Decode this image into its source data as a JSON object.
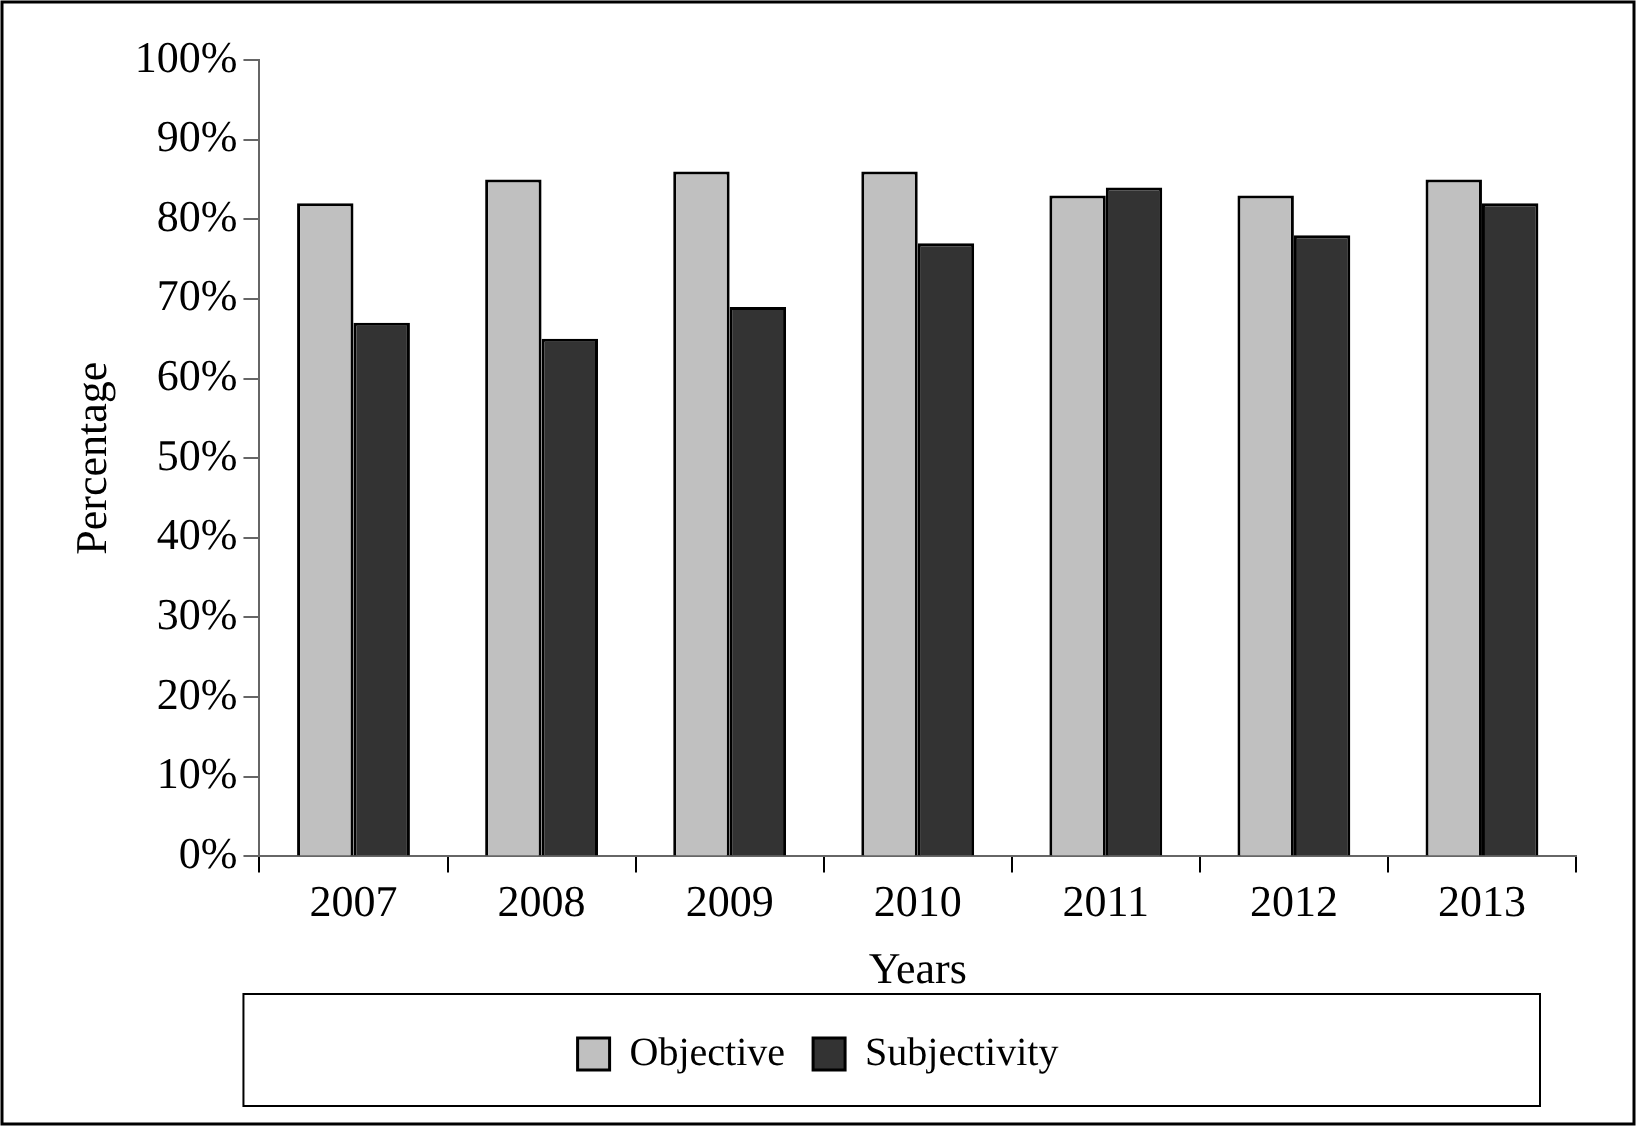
{
  "chart_data": {
    "type": "bar",
    "xlabel": "Years",
    "ylabel": "Percentage",
    "categories": [
      "2007",
      "2008",
      "2009",
      "2010",
      "2011",
      "2012",
      "2013"
    ],
    "series": [
      {
        "name": "Objective",
        "color": "#c0c0c0",
        "values": [
          82,
          85,
          86,
          86,
          83,
          83,
          85
        ]
      },
      {
        "name": "Subjectivity",
        "color": "#333333",
        "values": [
          67,
          65,
          69,
          77,
          84,
          78,
          82
        ]
      }
    ],
    "ylim": [
      0,
      100
    ],
    "yticks": [
      {
        "value": 0,
        "label": "0%"
      },
      {
        "value": 10,
        "label": "10%"
      },
      {
        "value": 20,
        "label": "20%"
      },
      {
        "value": 30,
        "label": "30%"
      },
      {
        "value": 40,
        "label": "40%"
      },
      {
        "value": 50,
        "label": "50%"
      },
      {
        "value": 60,
        "label": "60%"
      },
      {
        "value": 70,
        "label": "70%"
      },
      {
        "value": 80,
        "label": "80%"
      },
      {
        "value": 90,
        "label": "90%"
      },
      {
        "value": 100,
        "label": "100%"
      }
    ],
    "grid": false,
    "legend": "bottom"
  }
}
